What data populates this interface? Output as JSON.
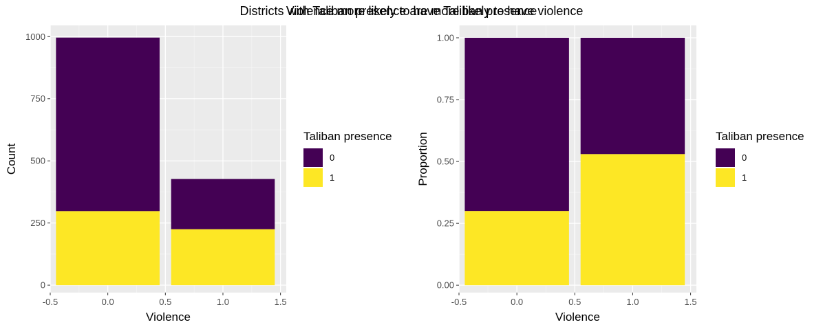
{
  "titles": [
    "Districts with Taliban presence are more likely to have violence",
    "Violence more likely to have Taliban presence"
  ],
  "colors": {
    "panel_bg": "#EBEBEB",
    "grid_major": "#FFFFFF",
    "grid_minor": "#F5F5F5",
    "fill_0": "#440154",
    "fill_1": "#FDE725"
  },
  "chart_data": [
    {
      "type": "bar",
      "stacked": true,
      "categories": [
        0,
        1
      ],
      "series": [
        {
          "name": "0",
          "values": [
            698,
            202
          ]
        },
        {
          "name": "1",
          "values": [
            298,
            225
          ]
        }
      ],
      "xlabel": "Violence",
      "ylabel": "Count",
      "xlim": [
        -0.5,
        1.55
      ],
      "ylim": [
        -30,
        1045
      ],
      "x_ticks": [
        -0.5,
        0.0,
        0.5,
        1.0,
        1.5
      ],
      "x_tick_labels": [
        "-0.5",
        "0.0",
        "0.5",
        "1.0",
        "1.5"
      ],
      "y_ticks": [
        0,
        250,
        500,
        750,
        1000
      ],
      "y_tick_labels": [
        "0",
        "250",
        "500",
        "750",
        "1000"
      ],
      "legend": {
        "title": "Taliban presence",
        "entries": [
          "0",
          "1"
        ],
        "position": "right"
      },
      "grid": true
    },
    {
      "type": "bar",
      "stacked": true,
      "normalized": true,
      "categories": [
        0,
        1
      ],
      "series": [
        {
          "name": "0",
          "values": [
            0.7,
            0.47
          ]
        },
        {
          "name": "1",
          "values": [
            0.3,
            0.53
          ]
        }
      ],
      "xlabel": "Violence",
      "ylabel": "Proportion",
      "xlim": [
        -0.5,
        1.55
      ],
      "ylim": [
        -0.03,
        1.05
      ],
      "x_ticks": [
        -0.5,
        0.0,
        0.5,
        1.0,
        1.5
      ],
      "x_tick_labels": [
        "-0.5",
        "0.0",
        "0.5",
        "1.0",
        "1.5"
      ],
      "y_ticks": [
        0,
        0.25,
        0.5,
        0.75,
        1.0
      ],
      "y_tick_labels": [
        "0.00",
        "0.25",
        "0.50",
        "0.75",
        "1.00"
      ],
      "legend": {
        "title": "Taliban presence",
        "entries": [
          "0",
          "1"
        ],
        "position": "right"
      },
      "grid": true
    }
  ]
}
